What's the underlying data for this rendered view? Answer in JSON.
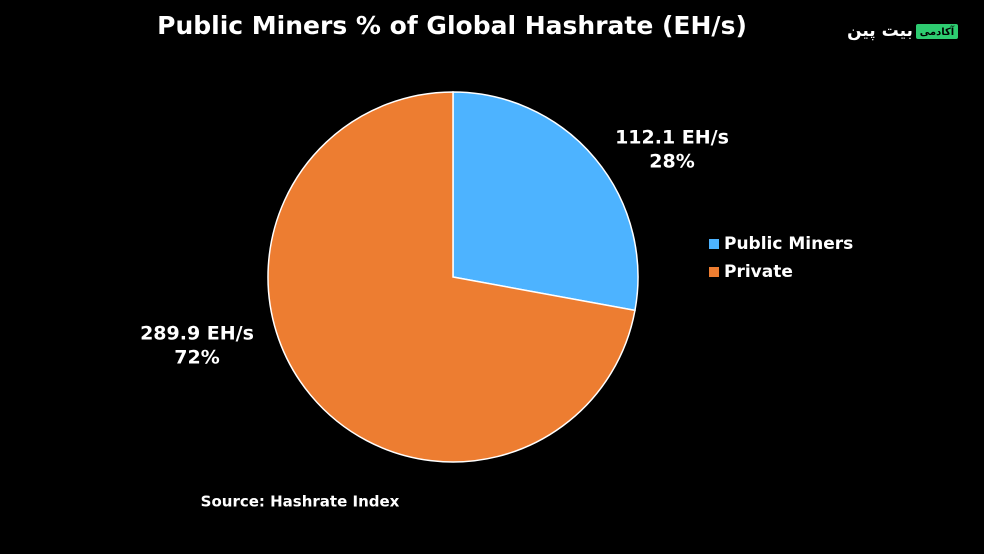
{
  "chart_data": {
    "type": "pie",
    "title": "Public Miners % of Global Hashrate (EH/s)",
    "categories": [
      "Public Miners",
      "Private"
    ],
    "values": [
      112.1,
      289.9
    ],
    "value_labels": [
      "112.1 EH/s",
      "289.9 EH/s"
    ],
    "percentages": [
      28,
      72
    ],
    "percentage_labels": [
      "28%",
      "72%"
    ],
    "colors": [
      "#4db3ff",
      "#ed7d31"
    ],
    "legend": "right",
    "source": "Source: Hashrate Index"
  },
  "logo": {
    "text": "بیت پین",
    "badge": "آکادمی"
  }
}
